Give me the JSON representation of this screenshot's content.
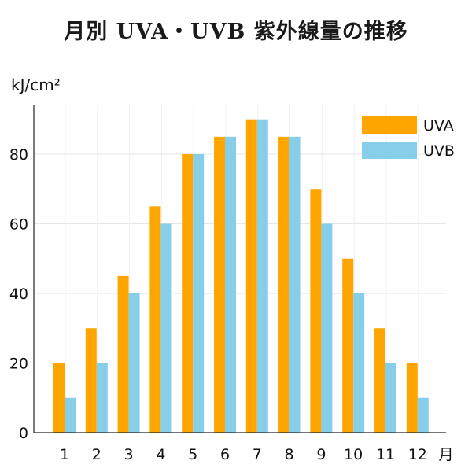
{
  "chart_data": {
    "type": "bar",
    "title": "月別 UVA・UVB 紫外線量の推移",
    "ylabel": "kJ/cm²",
    "xlabel": "月",
    "categories": [
      "1",
      "2",
      "3",
      "4",
      "5",
      "6",
      "7",
      "8",
      "9",
      "10",
      "11",
      "12"
    ],
    "series": [
      {
        "name": "UVA",
        "color": "#FFA500",
        "values": [
          20,
          30,
          45,
          65,
          80,
          85,
          90,
          85,
          70,
          50,
          30,
          20
        ]
      },
      {
        "name": "UVB",
        "color": "#87CEEB",
        "values": [
          10,
          20,
          40,
          60,
          80,
          85,
          90,
          85,
          60,
          40,
          20,
          10
        ]
      }
    ],
    "ylim": [
      0,
      94
    ],
    "yticks": [
      0,
      20,
      40,
      60,
      80
    ],
    "grid": true,
    "legend": "top-right"
  }
}
